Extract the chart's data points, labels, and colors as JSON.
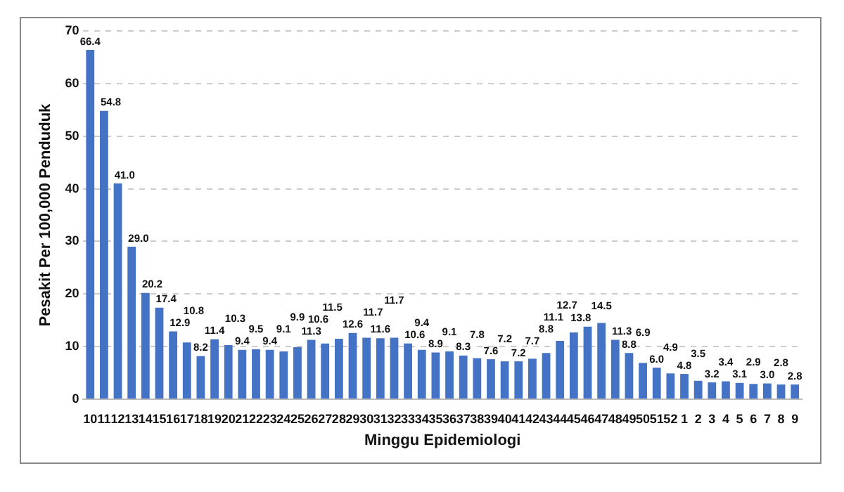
{
  "chart_data": {
    "type": "bar",
    "xlabel": "Minggu Epidemiologi",
    "ylabel": "Pesakit Per 100,000 Penduduk",
    "categories": [
      "10",
      "11",
      "12",
      "13",
      "14",
      "15",
      "16",
      "17",
      "18",
      "19",
      "20",
      "21",
      "22",
      "23",
      "24",
      "25",
      "26",
      "27",
      "28",
      "29",
      "30",
      "31",
      "32",
      "33",
      "34",
      "35",
      "36",
      "37",
      "38",
      "39",
      "40",
      "41",
      "42",
      "43",
      "44",
      "45",
      "46",
      "47",
      "48",
      "49",
      "50",
      "51",
      "52",
      "1",
      "2",
      "3",
      "4",
      "5",
      "6",
      "7",
      "8",
      "9"
    ],
    "values": [
      66.4,
      54.8,
      41.0,
      29.0,
      20.2,
      17.4,
      12.9,
      10.8,
      8.2,
      11.4,
      10.3,
      9.4,
      9.5,
      9.4,
      9.1,
      9.9,
      11.3,
      10.6,
      11.5,
      12.6,
      11.7,
      11.6,
      11.7,
      10.6,
      9.4,
      8.9,
      9.1,
      8.3,
      7.8,
      7.6,
      7.2,
      7.2,
      7.7,
      8.8,
      11.1,
      12.7,
      13.8,
      14.5,
      11.3,
      8.8,
      6.9,
      6.0,
      4.9,
      4.8,
      3.5,
      3.2,
      3.4,
      3.1,
      2.9,
      3.0,
      2.8,
      2.8
    ],
    "value_labels": [
      "66.4",
      "54.8",
      "41.0",
      "29.0",
      "20.2",
      "17.4",
      "12.9",
      "10.8",
      "8.2",
      "11.4",
      "10.3",
      "9.4",
      "9.5",
      "9.4",
      "9.1",
      "9.9",
      "11.3",
      "10.6",
      "11.5",
      "12.6",
      "11.7",
      "11.6",
      "11.7",
      "10.6",
      "9.4",
      "8.9",
      "9.1",
      "8.3",
      "7.8",
      "7.6",
      "7.2",
      "7.2",
      "7.7",
      "8.8",
      "11.1",
      "12.7",
      "13.8",
      "14.5",
      "11.3",
      "8.8",
      "6.9",
      "6.0",
      "4.9",
      "4.8",
      "3.5",
      "3.2",
      "3.4",
      "3.1",
      "2.9",
      "3.0",
      "2.8",
      "2.8"
    ],
    "color": "#4472c4",
    "ylim": [
      0,
      70
    ],
    "yticks": [
      0,
      10,
      20,
      30,
      40,
      50,
      60,
      70
    ],
    "grid": "y",
    "legend": false
  }
}
